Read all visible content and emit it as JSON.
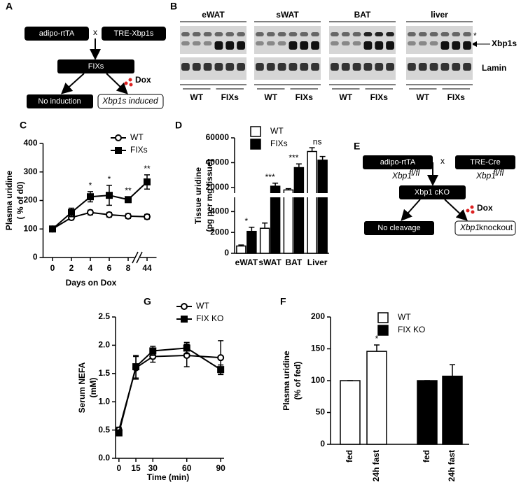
{
  "panel_labels": [
    "A",
    "B",
    "C",
    "D",
    "E",
    "F",
    "G"
  ],
  "diagram_a": {
    "parent_left": "adipo-rtTA",
    "cross": "x",
    "parent_right": "TRE-Xbp1s",
    "offspring": "FIXs",
    "treatment": "Dox",
    "outcome_off": "No induction",
    "outcome_on": "Xbp1s induced"
  },
  "blot_b": {
    "tissues": [
      "eWAT",
      "sWAT",
      "BAT",
      "liver"
    ],
    "nonspecific": "*",
    "target": "Xbp1s",
    "loading": "Lamin",
    "groups": [
      "WT",
      "FIXs"
    ]
  },
  "diagram_e": {
    "parent_left": "adipo-rtTA",
    "cross": "x",
    "parent_right": "TRE-Cre",
    "gene": "Xbp1",
    "allele": "fl/fl",
    "offspring": "Xbp1 cKO",
    "treatment": "Dox",
    "outcome_off": "No cleavage",
    "outcome_on_suffix": "knockout"
  },
  "chart_data": [
    {
      "type": "line",
      "ylabel": [
        "Plasma uridine",
        "( % of d0)"
      ],
      "xlabel": "Days on Dox",
      "categories": [
        "0",
        "2",
        "4",
        "6",
        "8",
        "44"
      ],
      "ylim": [
        0,
        400
      ],
      "yticks": [
        0,
        100,
        200,
        300,
        400
      ],
      "series": [
        {
          "name": "WT",
          "color": "#000000",
          "fill": "#ffffff",
          "marker": "circle",
          "values": [
            100,
            140,
            158,
            150,
            145,
            143
          ],
          "errors": [
            4,
            8,
            8,
            8,
            8,
            8
          ]
        },
        {
          "name": "FIXs",
          "color": "#000000",
          "fill": "#000000",
          "marker": "square",
          "values": [
            100,
            158,
            213,
            218,
            203,
            265
          ],
          "errors": [
            3,
            15,
            18,
            35,
            10,
            25
          ]
        }
      ],
      "annotations": [
        null,
        null,
        "*",
        "*",
        "**",
        "**"
      ]
    },
    {
      "type": "bar",
      "ylabel": [
        "Tissue uridine",
        "(pg per mg tissue)"
      ],
      "categories": [
        "eWAT",
        "sWAT",
        "BAT",
        "Liver"
      ],
      "ylim": [
        0,
        60000
      ],
      "ybreak": [
        5300,
        16000
      ],
      "yticks": [
        0,
        2000,
        4000,
        20000,
        40000,
        60000
      ],
      "series": [
        {
          "name": "WT",
          "color": "#000000",
          "fill": "#ffffff",
          "values": [
            700,
            2400,
            18000,
            49000
          ],
          "errors": [
            100,
            500,
            1000,
            3000
          ]
        },
        {
          "name": "FIXs",
          "color": "#000000",
          "fill": "#000000",
          "values": [
            2100,
            21000,
            36000,
            42000
          ],
          "errors": [
            400,
            2500,
            3000,
            3000
          ]
        }
      ],
      "annotations": [
        "*",
        "***",
        "***",
        "ns"
      ]
    },
    {
      "type": "line",
      "ylabel": [
        "Serum NEFA",
        "(mM)"
      ],
      "xlabel": "Time (min)",
      "x": [
        0,
        15,
        30,
        60,
        90
      ],
      "xlim": [
        -3,
        93
      ],
      "xticks": [
        0,
        15,
        30,
        60,
        90
      ],
      "ylim": [
        0,
        2.5
      ],
      "yticks": [
        {
          "value": 0,
          "label": "0.0"
        },
        0.5,
        {
          "value": 1,
          "label": "1.0"
        },
        1.5,
        {
          "value": 2,
          "label": "2.0"
        },
        2.5
      ],
      "series": [
        {
          "name": "WT",
          "color": "#000000",
          "fill": "#ffffff",
          "marker": "circle",
          "values": [
            0.5,
            1.6,
            1.8,
            1.82,
            1.78
          ],
          "errors": [
            0.05,
            0.2,
            0.1,
            0.2,
            0.3
          ]
        },
        {
          "name": "FIX KO",
          "color": "#000000",
          "fill": "#000000",
          "marker": "square",
          "values": [
            0.45,
            1.62,
            1.9,
            1.95,
            1.57
          ],
          "errors": [
            0.05,
            0.2,
            0.08,
            0.1,
            0.08
          ]
        }
      ]
    },
    {
      "type": "bar",
      "ylabel": [
        "Plasma uridine",
        "(% of fed)"
      ],
      "categories": [
        "fed",
        "24h fast",
        "fed",
        "24h fast"
      ],
      "ylim": [
        0,
        200
      ],
      "yticks": [
        0,
        50,
        100,
        150,
        200
      ],
      "series": [
        {
          "name": "WT",
          "color": "#000000",
          "fill": "#ffffff",
          "values": [
            100,
            146,
            null,
            null
          ],
          "errors": [
            0,
            10,
            null,
            null
          ]
        },
        {
          "name": "FIX KO",
          "color": "#000000",
          "fill": "#000000",
          "values": [
            null,
            null,
            100,
            107
          ],
          "errors": [
            null,
            null,
            0,
            18
          ]
        }
      ],
      "annotations": [
        null,
        "*",
        null,
        null
      ]
    }
  ]
}
